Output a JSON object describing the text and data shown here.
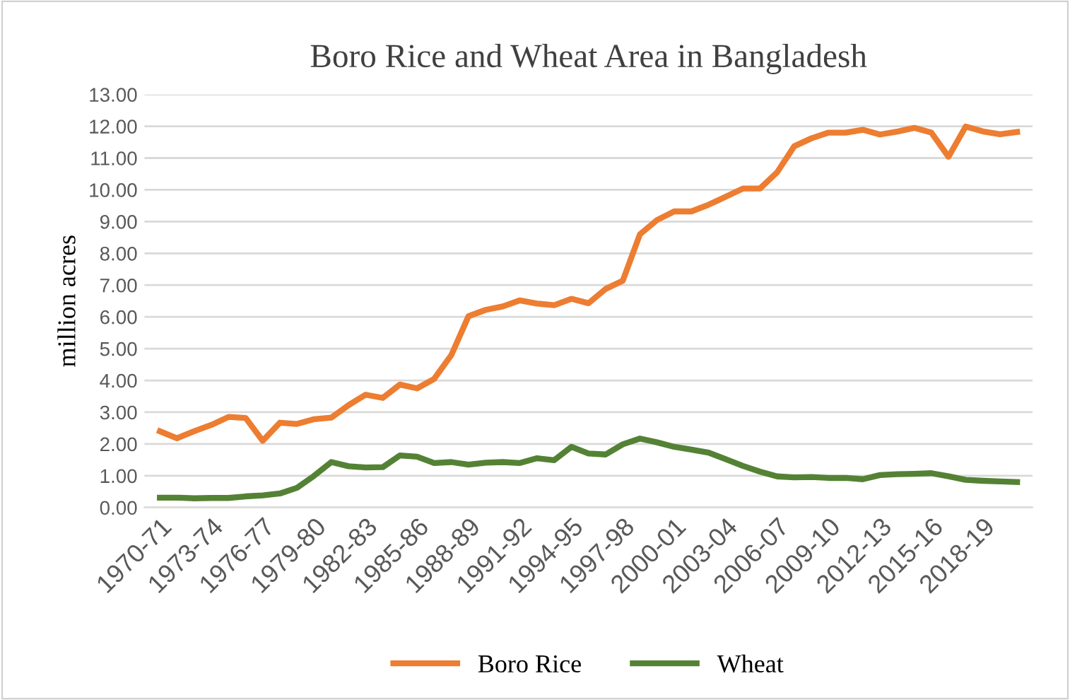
{
  "chart_data": {
    "type": "line",
    "title": "Boro Rice and Wheat Area in Bangladesh",
    "ylabel": "million acres",
    "categories": [
      "1970-71",
      null,
      null,
      "1973-74",
      null,
      null,
      "1976-77",
      null,
      null,
      "1979-80",
      null,
      null,
      "1982-83",
      null,
      null,
      "1985-86",
      null,
      null,
      "1988-89",
      null,
      null,
      "1991-92",
      null,
      null,
      "1994-95",
      null,
      null,
      "1997-98",
      null,
      null,
      "2000-01",
      null,
      null,
      "2003-04",
      null,
      null,
      "2006-07",
      null,
      null,
      "2009-10",
      null,
      null,
      "2012-13",
      null,
      null,
      "2015-16",
      null,
      null,
      "2018-19",
      null,
      null
    ],
    "series": [
      {
        "name": "Boro Rice",
        "color": "#ed7d31",
        "values": [
          2.4,
          2.18,
          2.4,
          2.6,
          2.85,
          2.82,
          2.1,
          2.67,
          2.63,
          2.78,
          2.83,
          3.22,
          3.55,
          3.45,
          3.87,
          3.75,
          4.05,
          4.8,
          6.02,
          6.22,
          6.33,
          6.52,
          6.42,
          6.37,
          6.57,
          6.43,
          6.88,
          7.14,
          8.6,
          9.05,
          9.32,
          9.32,
          9.53,
          9.78,
          10.04,
          10.04,
          10.55,
          11.37,
          11.62,
          11.8,
          11.8,
          11.89,
          11.74,
          11.83,
          11.95,
          11.8,
          11.04,
          11.99,
          11.84,
          11.75,
          11.82
        ]
      },
      {
        "name": "Wheat",
        "color": "#548235",
        "values": [
          0.31,
          0.31,
          0.29,
          0.3,
          0.3,
          0.35,
          0.38,
          0.44,
          0.62,
          1.0,
          1.43,
          1.3,
          1.26,
          1.27,
          1.64,
          1.6,
          1.4,
          1.43,
          1.35,
          1.41,
          1.43,
          1.4,
          1.55,
          1.49,
          1.91,
          1.7,
          1.67,
          1.99,
          2.17,
          2.05,
          1.91,
          1.82,
          1.73,
          1.52,
          1.31,
          1.13,
          0.98,
          0.95,
          0.96,
          0.93,
          0.93,
          0.89,
          1.02,
          1.05,
          1.06,
          1.08,
          0.98,
          0.87,
          0.84,
          0.82,
          0.8
        ]
      }
    ],
    "ylim": [
      0,
      13
    ],
    "yticks": [
      {
        "value": 0,
        "label": "0.00"
      },
      {
        "value": 1,
        "label": "1.00"
      },
      {
        "value": 2,
        "label": "2.00"
      },
      {
        "value": 3,
        "label": "3.00"
      },
      {
        "value": 4,
        "label": "4.00"
      },
      {
        "value": 5,
        "label": "5.00"
      },
      {
        "value": 6,
        "label": "6.00"
      },
      {
        "value": 7,
        "label": "7.00"
      },
      {
        "value": 8,
        "label": "8.00"
      },
      {
        "value": 9,
        "label": "9.00"
      },
      {
        "value": 10,
        "label": "10.00"
      },
      {
        "value": 11,
        "label": "11.00"
      },
      {
        "value": 12,
        "label": "12.00"
      },
      {
        "value": 13,
        "label": "13.00"
      }
    ],
    "grid": "y",
    "legend": "bottom",
    "marker": "none",
    "line_style": "solid"
  }
}
